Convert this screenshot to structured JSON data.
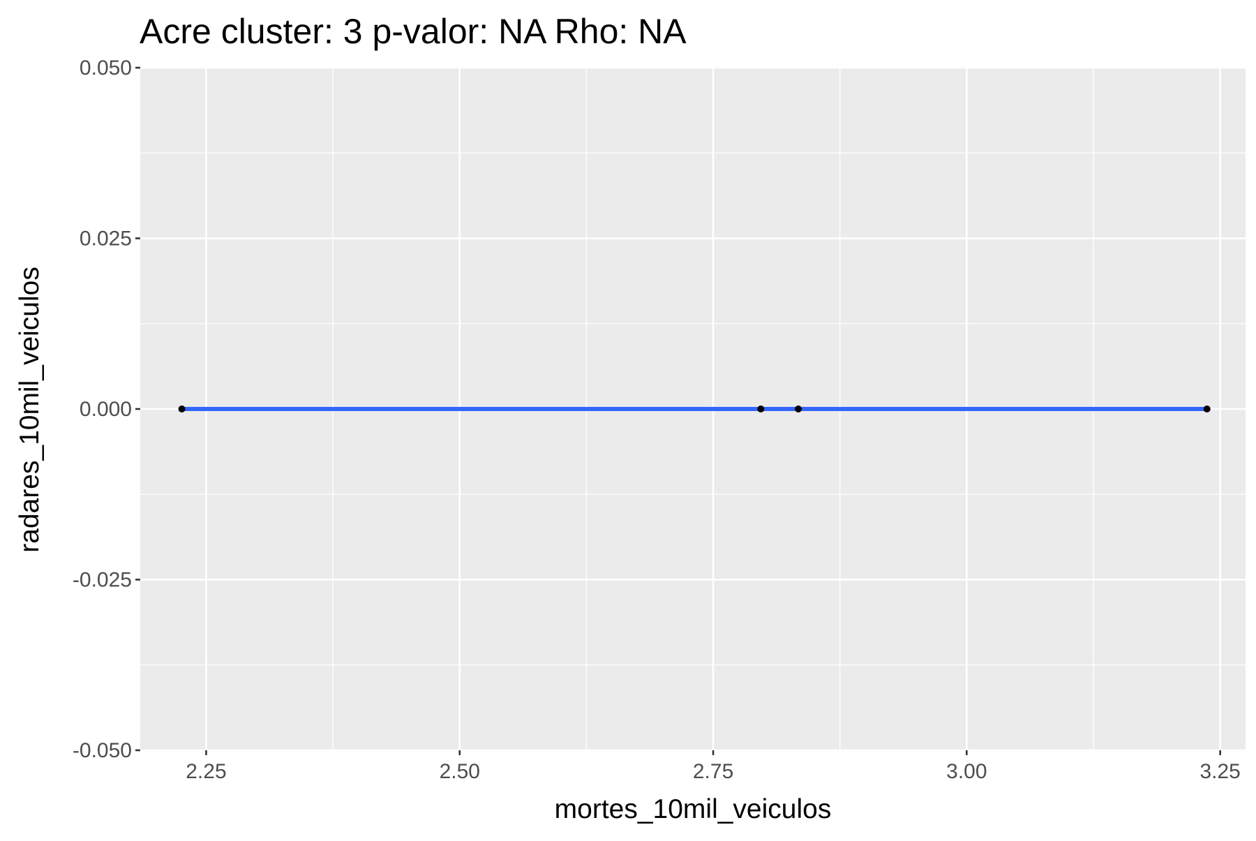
{
  "chart_data": {
    "type": "scatter",
    "title": "Acre cluster: 3 p-valor: NA Rho: NA",
    "xlabel": "mortes_10mil_veiculos",
    "ylabel": "radares_10mil_veiculos",
    "xlim": [
      2.185,
      3.275
    ],
    "ylim": [
      -0.05,
      0.05
    ],
    "x_ticks": [
      2.25,
      2.5,
      2.75,
      3.0,
      3.25
    ],
    "x_tick_labels": [
      "2.25",
      "2.50",
      "2.75",
      "3.00",
      "3.25"
    ],
    "y_ticks": [
      0.05,
      0.025,
      0.0,
      -0.025,
      -0.05
    ],
    "y_tick_labels": [
      "0.050",
      "0.025",
      "0.000",
      "-0.025",
      "-0.050"
    ],
    "grid": true,
    "points": [
      {
        "x": 2.226,
        "y": 0.0
      },
      {
        "x": 2.797,
        "y": 0.0
      },
      {
        "x": 2.834,
        "y": 0.0
      },
      {
        "x": 3.237,
        "y": 0.0
      }
    ],
    "fit_line": {
      "x": [
        2.226,
        3.237
      ],
      "y": [
        0.0,
        0.0
      ]
    },
    "colors": {
      "panel_background": "#ebebeb",
      "grid": "#ffffff",
      "point": "#000000",
      "fit_line": "#3366ff",
      "tick_label": "#4d4d4d",
      "tick_mark": "#333333"
    }
  }
}
